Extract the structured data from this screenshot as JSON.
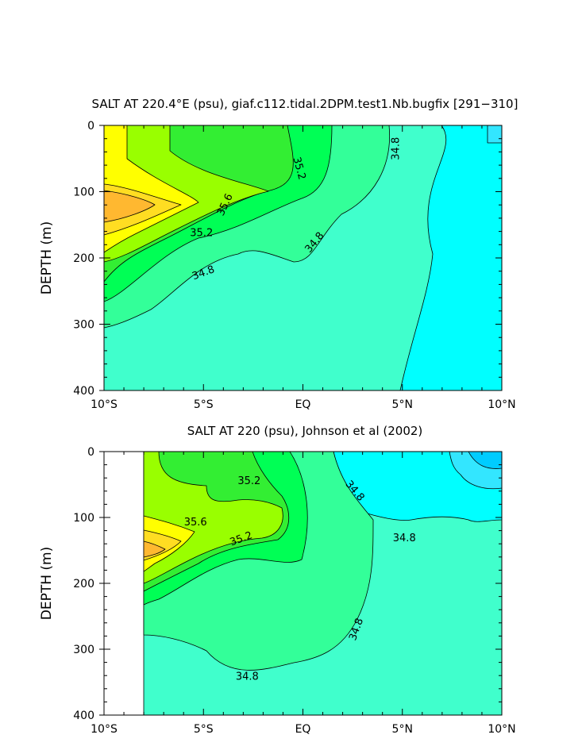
{
  "figure": {
    "panels": [
      {
        "title": "SALT AT 220.4°E (psu), giaf.c112.tidal.2DPM.test1.Nb.bugfix [291−310]",
        "ylabel": "DEPTH (m)"
      },
      {
        "title": "SALT AT 220 (psu), Johnson et al (2002)",
        "ylabel": "DEPTH (m)"
      }
    ]
  },
  "colors": {
    "s_below_34_6": "#00ffff",
    "s_34_6": "#40ffcc",
    "s_34_8": "#33ff99",
    "s_35_0": "#00ff55",
    "s_35_2": "#33ee33",
    "s_35_4": "#99ff00",
    "s_35_6": "#ffff00",
    "s_35_8": "#ffdd22",
    "s_36_0": "#ffb830",
    "s_35_4_top": "#99ff00",
    "s_34_4": "#33e6ff",
    "s_34_2": "#00ccff"
  },
  "chart_data": [
    {
      "type": "contour",
      "variable": "salinity (psu)",
      "x_ticks": [
        "10°S",
        "5°S",
        "EQ",
        "5°N",
        "10°N"
      ],
      "x_tick_values": [
        -10,
        -5,
        0,
        5,
        10
      ],
      "xlim": [
        -10,
        10
      ],
      "y_ticks": [
        "0",
        "100",
        "200",
        "300",
        "400"
      ],
      "y_tick_values": [
        0,
        100,
        200,
        300,
        400
      ],
      "ylim": [
        400,
        0
      ],
      "y_inverted": true,
      "contour_interval": 0.2,
      "fill_levels": [
        {
          "level": 34.6,
          "color": "#00ffff"
        },
        {
          "level": 34.8,
          "color": "#40ffcc"
        },
        {
          "level": 35.0,
          "color": "#33ff99"
        },
        {
          "level": 35.2,
          "color": "#00ff55"
        },
        {
          "level": 35.4,
          "color": "#33ee33"
        },
        {
          "level": 35.6,
          "color": "#99ff00"
        },
        {
          "level": 35.8,
          "color": "#ffff00"
        },
        {
          "level": 36.0,
          "color": "#ffdd22"
        },
        {
          "level": 36.2,
          "color": "#ffb830"
        }
      ],
      "contour_labels": [
        {
          "text": "34.8",
          "x": 4.7,
          "y": 35,
          "angle": -90
        },
        {
          "text": "35.2",
          "x": -0.2,
          "y": 65,
          "angle": 75
        },
        {
          "text": "35.6",
          "x": -3.9,
          "y": 120,
          "angle": -65
        },
        {
          "text": "35.2",
          "x": -5.1,
          "y": 163,
          "angle": 0
        },
        {
          "text": "34.8",
          "x": 0.6,
          "y": 177,
          "angle": -50
        },
        {
          "text": "34.8",
          "x": -5.0,
          "y": 223,
          "angle": -20
        }
      ]
    },
    {
      "type": "contour",
      "variable": "salinity (psu)",
      "x_ticks": [
        "10°S",
        "5°S",
        "EQ",
        "5°N",
        "10°N"
      ],
      "x_tick_values": [
        -10,
        -5,
        0,
        5,
        10
      ],
      "xlim": [
        -10,
        10
      ],
      "y_ticks": [
        "0",
        "100",
        "200",
        "300",
        "400"
      ],
      "y_tick_values": [
        0,
        100,
        200,
        300,
        400
      ],
      "ylim": [
        400,
        0
      ],
      "y_inverted": true,
      "data_xrange": [
        -8,
        10
      ],
      "contour_interval": 0.2,
      "contour_labels": [
        {
          "text": "35.2",
          "x": -2.7,
          "y": 45,
          "angle": 0
        },
        {
          "text": "34.8",
          "x": 2.6,
          "y": 60,
          "angle": 50
        },
        {
          "text": "35.6",
          "x": -5.4,
          "y": 108,
          "angle": 0
        },
        {
          "text": "35.2",
          "x": -3.1,
          "y": 133,
          "angle": -20
        },
        {
          "text": "34.8",
          "x": 5.1,
          "y": 132,
          "angle": 0
        },
        {
          "text": "34.8",
          "x": 2.7,
          "y": 270,
          "angle": -70
        },
        {
          "text": "34.8",
          "x": -2.8,
          "y": 342,
          "angle": 0
        }
      ]
    }
  ]
}
